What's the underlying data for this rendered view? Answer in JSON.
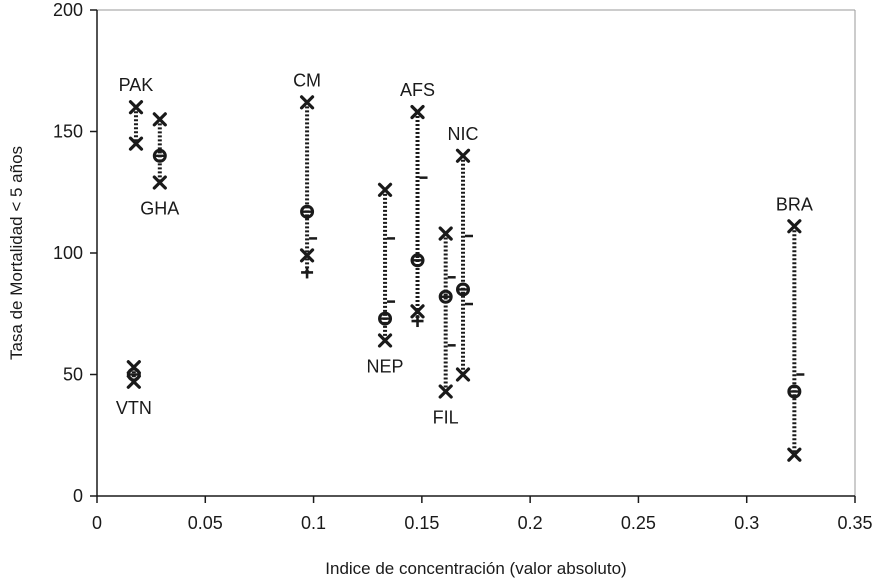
{
  "chart_data": {
    "type": "scatter",
    "title": "",
    "xlabel": "Indice de concentración (valor absoluto)",
    "ylabel": "Tasa de Mortalidad < 5 años",
    "xlim": [
      0,
      0.35
    ],
    "ylim": [
      0,
      200
    ],
    "x_ticks": [
      {
        "value": 0,
        "label": "0"
      },
      {
        "value": 0.05,
        "label": "0.05"
      },
      {
        "value": 0.1,
        "label": "0.1"
      },
      {
        "value": 0.15,
        "label": "0.15"
      },
      {
        "value": 0.2,
        "label": "0.2"
      },
      {
        "value": 0.25,
        "label": "0.25"
      },
      {
        "value": 0.3,
        "label": "0.3"
      },
      {
        "value": 0.35,
        "label": "0.35"
      }
    ],
    "y_ticks": [
      {
        "value": 0,
        "label": "0"
      },
      {
        "value": 50,
        "label": "50"
      },
      {
        "value": 100,
        "label": "100"
      },
      {
        "value": 150,
        "label": "150"
      },
      {
        "value": 200,
        "label": "200"
      }
    ],
    "grid": false,
    "countries": [
      {
        "label": "PAK",
        "x": 0.018,
        "x_markers": [
          160,
          145
        ],
        "o_markers": [],
        "dash_markers": [],
        "plus_markers": [],
        "label_pos": "above"
      },
      {
        "label": "GHA",
        "x": 0.029,
        "x_markers": [
          155,
          129
        ],
        "o_markers": [
          140
        ],
        "dash_markers": [],
        "plus_markers": [],
        "label_pos": "below"
      },
      {
        "label": "VTN",
        "x": 0.017,
        "x_markers": [
          53,
          47
        ],
        "o_markers": [
          50
        ],
        "dash_markers": [],
        "plus_markers": [],
        "label_pos": "below"
      },
      {
        "label": "CM",
        "x": 0.097,
        "x_markers": [
          162,
          99
        ],
        "o_markers": [
          117
        ],
        "dash_markers": [
          106
        ],
        "plus_markers": [
          92
        ],
        "label_pos": "above"
      },
      {
        "label": "NEP",
        "x": 0.133,
        "x_markers": [
          126,
          64
        ],
        "o_markers": [
          73
        ],
        "dash_markers": [
          106,
          80
        ],
        "plus_markers": [],
        "label_pos": "below"
      },
      {
        "label": "AFS",
        "x": 0.148,
        "x_markers": [
          158,
          76
        ],
        "o_markers": [
          97
        ],
        "dash_markers": [
          131
        ],
        "plus_markers": [
          72
        ],
        "label_pos": "above"
      },
      {
        "label": "FIL",
        "x": 0.161,
        "x_markers": [
          108,
          43
        ],
        "o_markers": [
          82
        ],
        "dash_markers": [
          90,
          62
        ],
        "plus_markers": [],
        "label_pos": "below"
      },
      {
        "label": "NIC",
        "x": 0.169,
        "x_markers": [
          140,
          50
        ],
        "o_markers": [
          85
        ],
        "dash_markers": [
          107,
          79
        ],
        "plus_markers": [],
        "label_pos": "above"
      },
      {
        "label": "BRA",
        "x": 0.322,
        "x_markers": [
          111,
          17
        ],
        "o_markers": [
          43
        ],
        "dash_markers": [
          50
        ],
        "plus_markers": [],
        "label_pos": "above"
      }
    ]
  }
}
